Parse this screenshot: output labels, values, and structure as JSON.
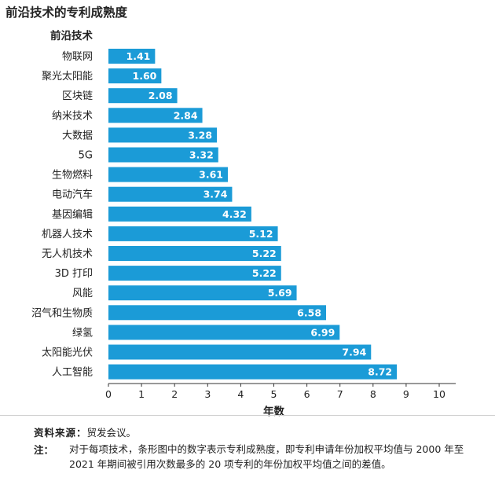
{
  "title": "前沿技术的专利成熟度",
  "chart_data": {
    "type": "bar",
    "orientation": "horizontal",
    "category_header": "前沿技术",
    "categories": [
      "物联网",
      "聚光太阳能",
      "区块链",
      "纳米技术",
      "大数据",
      "5G",
      "生物燃料",
      "电动汽车",
      "基因编辑",
      "机器人技术",
      "无人机技术",
      "3D 打印",
      "风能",
      "沼气和生物质",
      "绿氢",
      "太阳能光伏",
      "人工智能"
    ],
    "values": [
      1.41,
      1.6,
      2.08,
      2.84,
      3.28,
      3.32,
      3.61,
      3.74,
      4.32,
      5.12,
      5.22,
      5.22,
      5.69,
      6.58,
      6.99,
      7.94,
      8.72
    ],
    "value_labels": [
      "1.41",
      "1.60",
      "2.08",
      "2.84",
      "3.28",
      "3.32",
      "3.61",
      "3.74",
      "4.32",
      "5.12",
      "5.22",
      "5.22",
      "5.69",
      "6.58",
      "6.99",
      "7.94",
      "8.72"
    ],
    "xlabel": "年数",
    "xlim": [
      0,
      10
    ],
    "xticks": [
      "0",
      "1",
      "2",
      "3",
      "4",
      "5",
      "6",
      "7",
      "8",
      "9",
      "10"
    ],
    "bar_color": "#1b9bd7",
    "grid": false
  },
  "source_label": "资料来源：",
  "source_text": "贸发会议。",
  "note_label": "注：",
  "note_text": "对于每项技术，条形图中的数字表示专利成熟度，即专利申请年份加权平均值与 2000 年至 2021 年期间被引用次数最多的 20 项专利的年份加权平均值之间的差值。"
}
